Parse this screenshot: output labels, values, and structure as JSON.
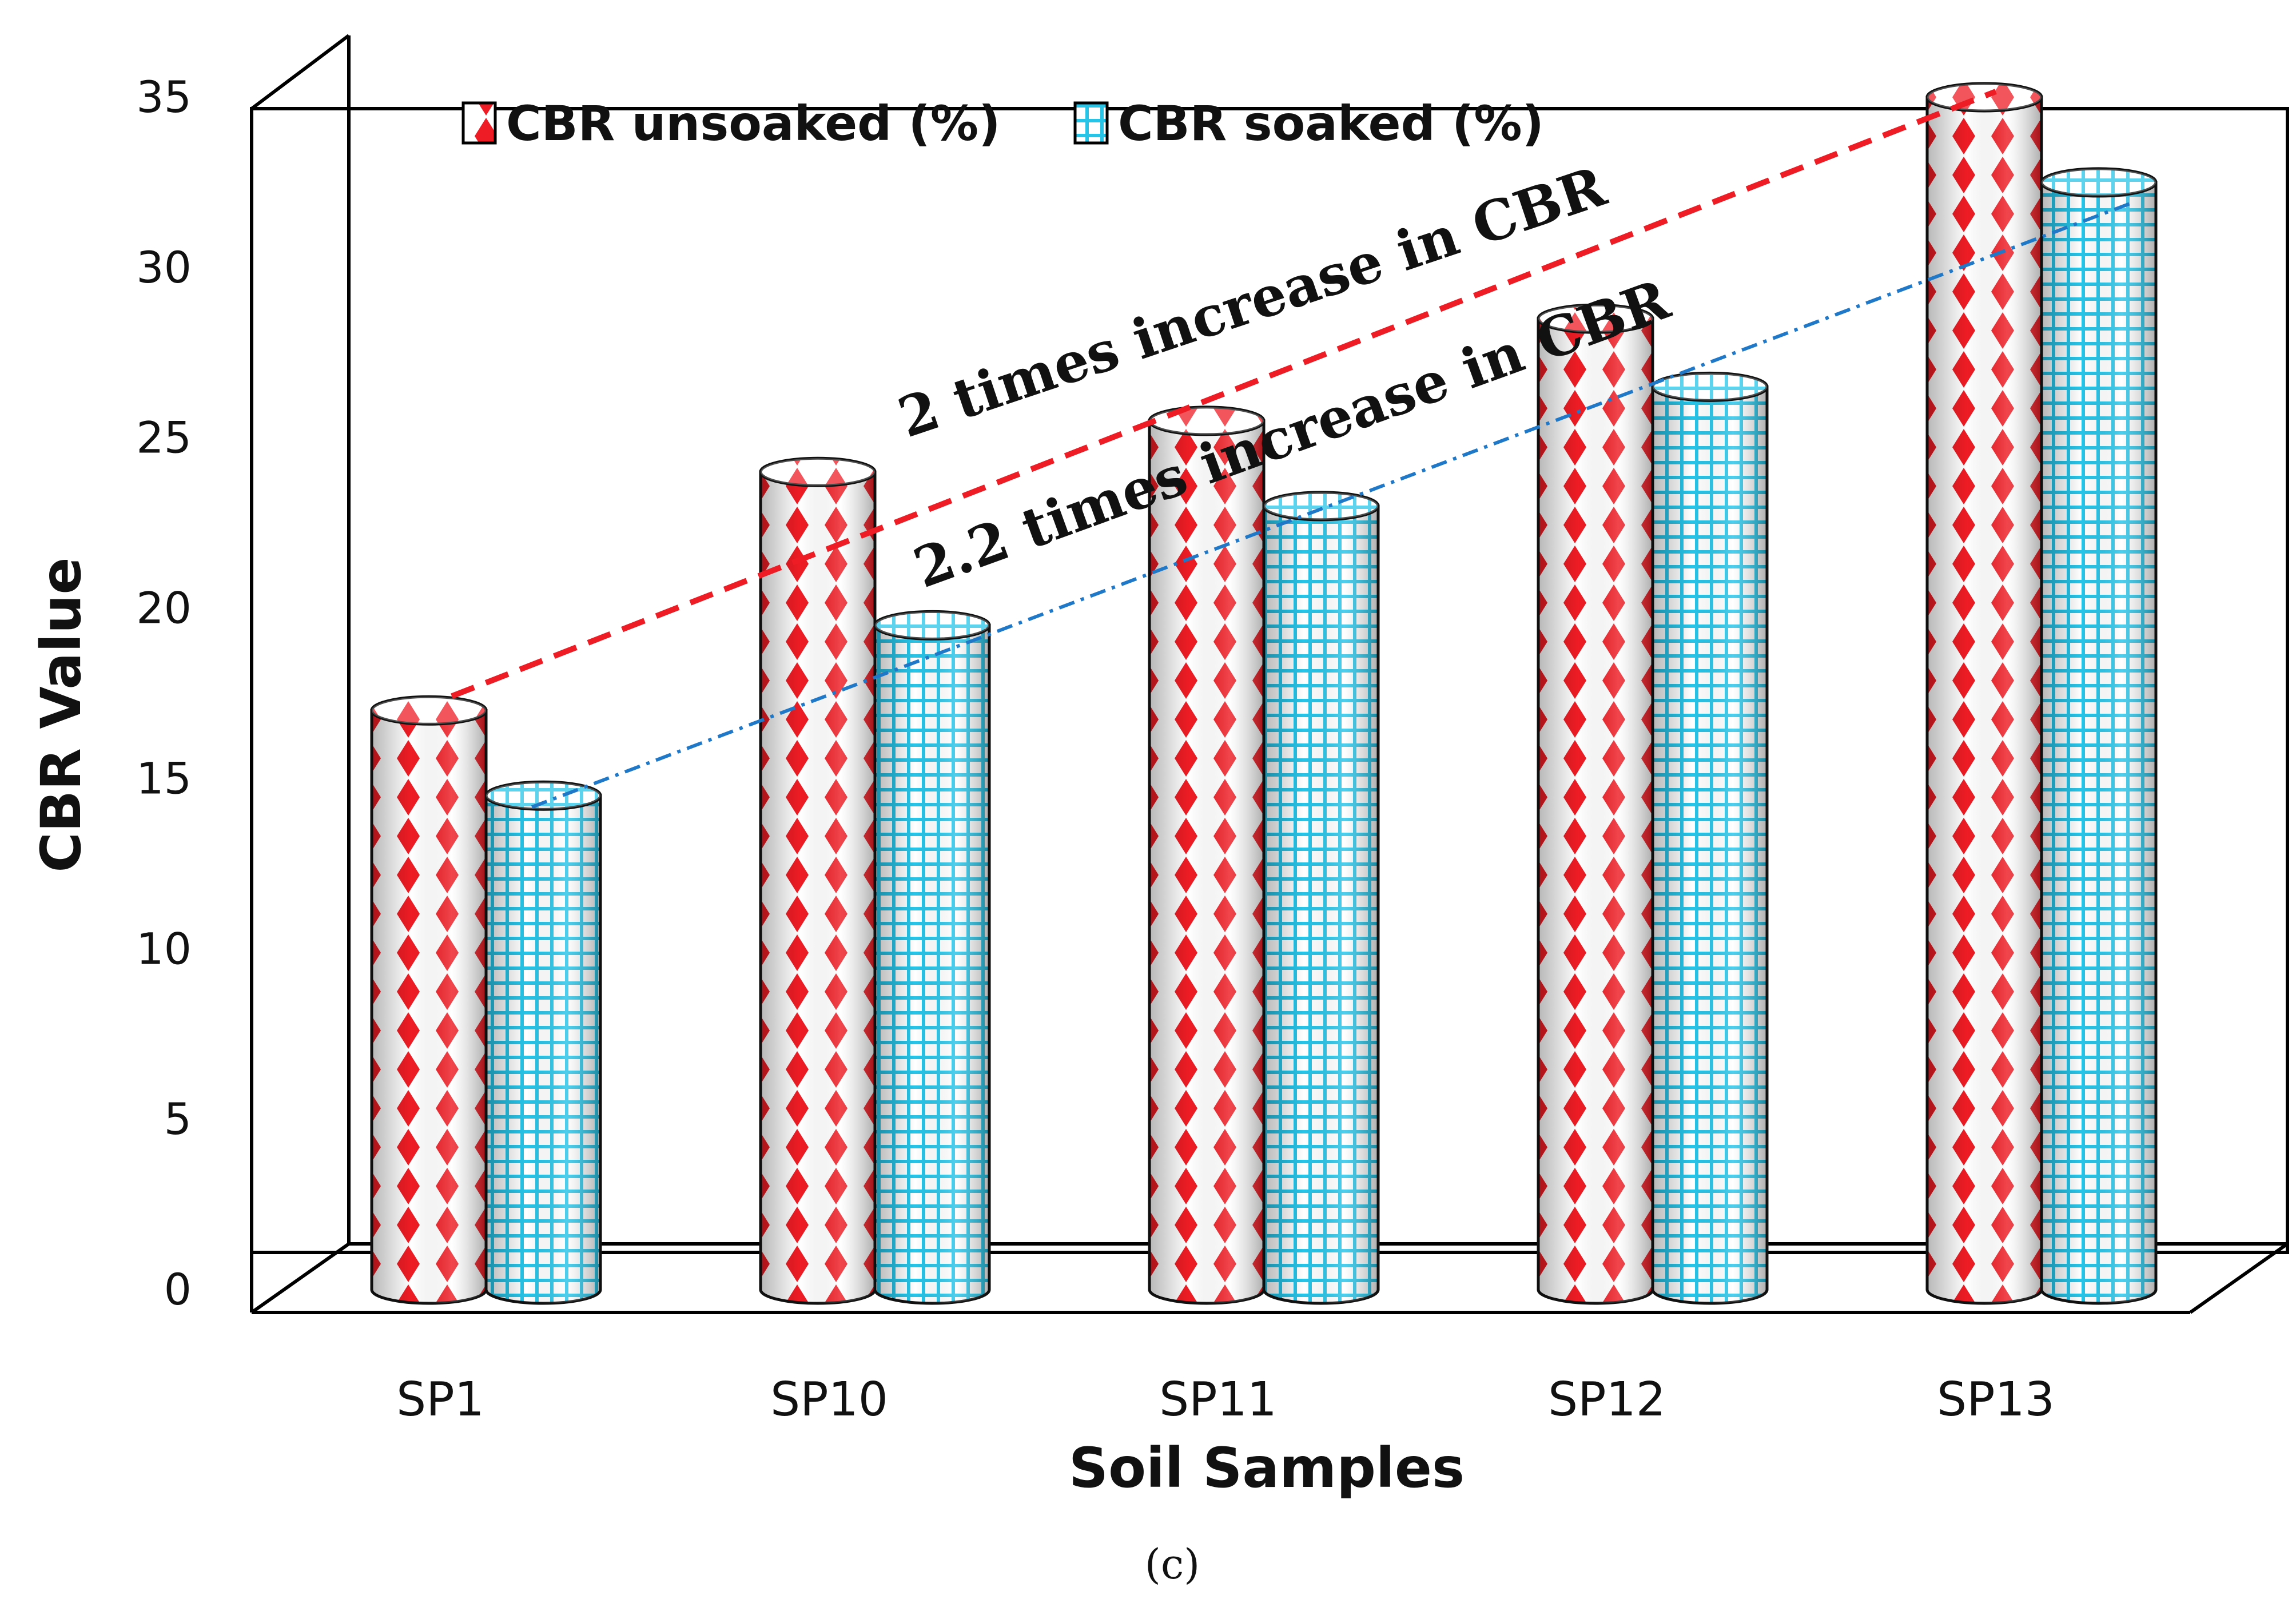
{
  "chart_data": {
    "type": "bar",
    "style": "3d-cylinder",
    "categories": [
      "SP1",
      "SP10",
      "SP11",
      "SP12",
      "SP13"
    ],
    "series": [
      {
        "name": "CBR unsoaked (%)",
        "values": [
          17,
          24,
          25.5,
          28.5,
          35
        ],
        "color": "#ee1c24"
      },
      {
        "name": "CBR soaked (%)",
        "values": [
          14.5,
          19.5,
          23,
          26.5,
          32.5
        ],
        "color": "#27c4e8"
      }
    ],
    "xlabel": "Soil Samples",
    "ylabel": "CBR Value",
    "ylim": [
      0,
      35
    ],
    "yticks": [
      "0",
      "5",
      "10",
      "15",
      "20",
      "25",
      "30",
      "35"
    ],
    "legend_position": "top-left",
    "annotations": [
      {
        "text": "2 times increase in CBR",
        "series": "CBR unsoaked (%)",
        "from": "SP1",
        "to": "SP13",
        "color": "#ee1c24"
      },
      {
        "text": "2.2 times increase in CBR",
        "series": "CBR soaked (%)",
        "from": "SP1",
        "to": "SP13",
        "color": "#1f78c8"
      }
    ],
    "caption": "(c)"
  }
}
